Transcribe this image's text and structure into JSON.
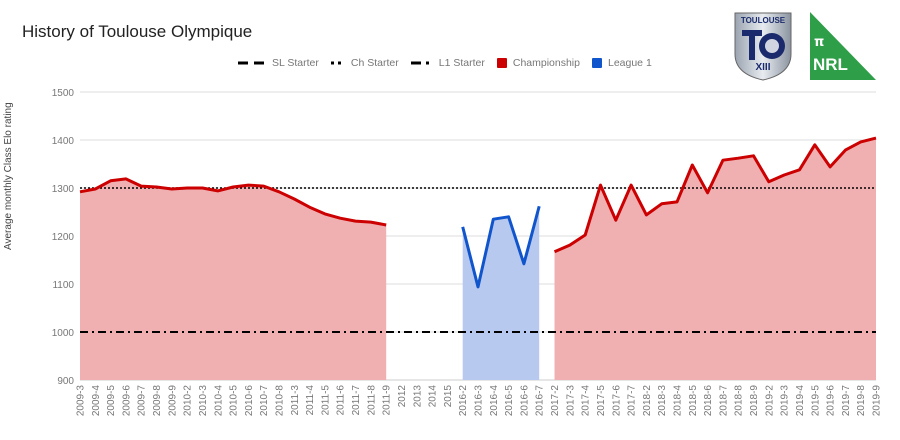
{
  "title": "History of Toulouse Olympique",
  "logos": {
    "club": "TOULOUSE",
    "club_sub": "XIII",
    "nrl_top": "π",
    "nrl_text": "NRL"
  },
  "colors": {
    "championship_line": "#cc0000",
    "championship_fill": "#f0b0b2",
    "league1_line": "#1155cc",
    "league1_fill": "#b8c9f0",
    "grid": "#dddddd"
  },
  "chart_data": {
    "type": "area",
    "title": "History of Toulouse Olympique",
    "xlabel": "",
    "ylabel": "Average monthly Class Elo rating",
    "ylim": [
      900,
      1500
    ],
    "yticks": [
      900,
      1000,
      1100,
      1200,
      1300,
      1400,
      1500
    ],
    "grid": true,
    "legend_position": "top",
    "legend": [
      "SL Starter",
      "Ch Starter",
      "L1 Starter",
      "Championship",
      "League 1"
    ],
    "categories": [
      "2009-3",
      "2009-4",
      "2009-5",
      "2009-6",
      "2009-7",
      "2009-8",
      "2009-9",
      "2010-2",
      "2010-3",
      "2010-4",
      "2010-5",
      "2010-6",
      "2010-7",
      "2010-8",
      "2011-3",
      "2011-4",
      "2011-5",
      "2011-6",
      "2011-7",
      "2011-8",
      "2011-9",
      "2012",
      "2013",
      "2014",
      "2015",
      "2016-2",
      "2016-3",
      "2016-4",
      "2016-5",
      "2016-6",
      "2016-7",
      "2017-2",
      "2017-3",
      "2017-4",
      "2017-5",
      "2017-6",
      "2017-7",
      "2018-2",
      "2018-3",
      "2018-4",
      "2018-5",
      "2018-6",
      "2018-7",
      "2018-8",
      "2018-9",
      "2019-2",
      "2019-3",
      "2019-4",
      "2019-5",
      "2019-6",
      "2019-7",
      "2019-8",
      "2019-9"
    ],
    "series": [
      {
        "name": "Championship",
        "type": "area",
        "values": [
          1292,
          1298,
          1315,
          1319,
          1304,
          1302,
          1298,
          1300,
          1300,
          1294,
          1302,
          1306,
          1304,
          1292,
          1277,
          1260,
          1246,
          1237,
          1231,
          1229,
          1223,
          null,
          null,
          null,
          null,
          null,
          null,
          null,
          null,
          null,
          null,
          1167,
          1181,
          1202,
          1306,
          1233,
          1306,
          1244,
          1267,
          1271,
          1348,
          1290,
          1358,
          1362,
          1367,
          1313,
          1327,
          1338,
          1390,
          1344,
          1379,
          1396,
          1404
        ]
      },
      {
        "name": "League 1",
        "type": "area",
        "values": [
          null,
          null,
          null,
          null,
          null,
          null,
          null,
          null,
          null,
          null,
          null,
          null,
          null,
          null,
          null,
          null,
          null,
          null,
          null,
          null,
          null,
          null,
          null,
          null,
          null,
          1219,
          1094,
          1235,
          1240,
          1142,
          1262,
          null,
          null,
          null,
          null,
          null,
          null,
          null,
          null,
          null,
          null,
          null,
          null,
          null,
          null,
          null,
          null,
          null,
          null,
          null,
          null,
          null,
          null
        ]
      },
      {
        "name": "SL Starter",
        "type": "line",
        "style": "dashed",
        "constant": null
      },
      {
        "name": "Ch Starter",
        "type": "line",
        "style": "dotted",
        "constant": 1300
      },
      {
        "name": "L1 Starter",
        "type": "line",
        "style": "dash-dot",
        "constant": 1000
      }
    ]
  }
}
